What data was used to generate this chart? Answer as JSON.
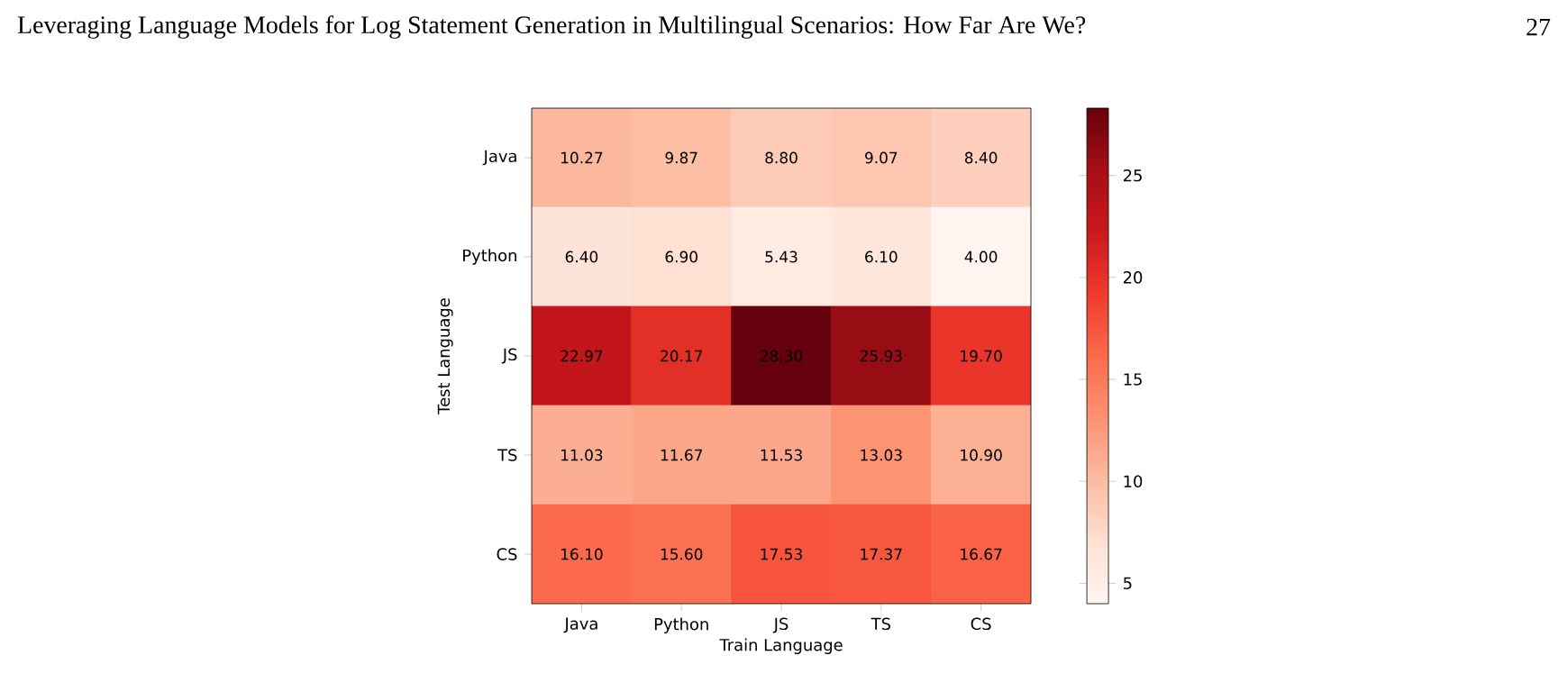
{
  "chart_data": {
    "type": "heatmap",
    "title": "Leveraging Language Models for Log Statement Generation in Multilingual Scenarios: How Far Are We?",
    "annotations": [
      "27"
    ],
    "xlabel": "Train Language",
    "ylabel": "Test Language",
    "categories": [
      "Java",
      "Python",
      "JS",
      "TS",
      "CS"
    ],
    "y_categories": [
      "Java",
      "Python",
      "JS",
      "TS",
      "CS"
    ],
    "cells": [
      [
        10.27,
        9.87,
        8.8,
        9.07,
        8.4
      ],
      [
        6.4,
        6.9,
        5.43,
        6.1,
        4.0
      ],
      [
        22.97,
        20.17,
        28.3,
        25.93,
        19.7
      ],
      [
        11.03,
        11.67,
        11.53,
        13.03,
        10.9
      ],
      [
        16.1,
        15.6,
        17.53,
        17.37,
        16.67
      ]
    ],
    "cell_labels": [
      [
        "10.27",
        "9.87",
        "8.80",
        "9.07",
        "8.40"
      ],
      [
        "6.40",
        "6.90",
        "5.43",
        "6.10",
        "4.00"
      ],
      [
        "22.97",
        "20.17",
        "28.30",
        "25.93",
        "19.70"
      ],
      [
        "11.03",
        "11.67",
        "11.53",
        "13.03",
        "10.90"
      ],
      [
        "16.10",
        "15.60",
        "17.53",
        "17.37",
        "16.67"
      ]
    ],
    "clim": [
      4.0,
      28.3
    ],
    "cticks": [
      5,
      10,
      15,
      20,
      25
    ]
  }
}
